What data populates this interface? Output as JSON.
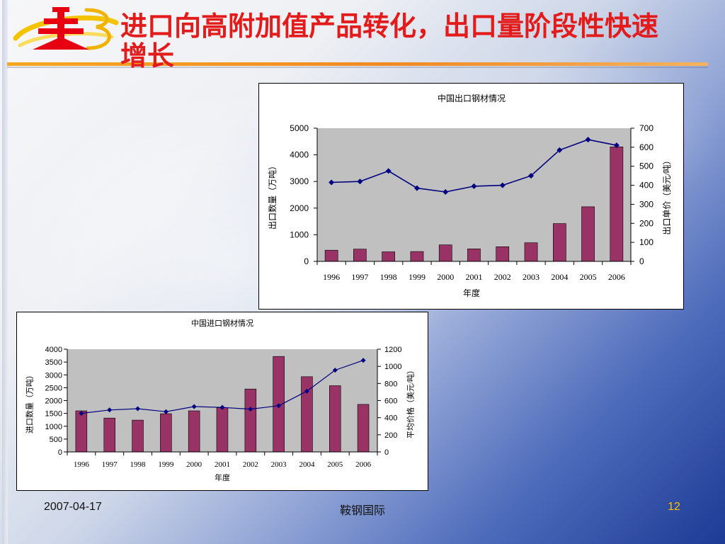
{
  "slide": {
    "title": "进口向高附加值产品转化，出口量阶段性快速增长",
    "footer_date": "2007-04-17",
    "footer_center": "鞍钢国际",
    "page_number": "12",
    "logo_icon": "company-logo-icon"
  },
  "colors": {
    "title": "#e31b1b",
    "page_number": "#ffc000",
    "bar": "#993366",
    "line": "#000080",
    "plot_background": "#c0c0c0"
  },
  "chart_data": [
    {
      "type": "bar",
      "title": "中国出口钢材情况",
      "xlabel": "年度",
      "ylabel": "出口数量（万吨）",
      "y2label": "出口单价（美元/吨）",
      "categories": [
        "1996",
        "1997",
        "1998",
        "1999",
        "2000",
        "2001",
        "2002",
        "2003",
        "2004",
        "2005",
        "2006"
      ],
      "series": [
        {
          "type": "bar",
          "values": [
            420,
            460,
            360,
            370,
            620,
            470,
            550,
            700,
            1420,
            2050,
            4300
          ]
        },
        {
          "type": "line",
          "secondary_axis": true,
          "values": [
            415,
            420,
            475,
            385,
            365,
            395,
            400,
            450,
            585,
            640,
            610
          ]
        }
      ],
      "ylim": [
        0,
        5000
      ],
      "y_ticks": [
        0,
        1000,
        2000,
        3000,
        4000,
        5000
      ],
      "y2lim": [
        0,
        700
      ],
      "y2_ticks": [
        0,
        100,
        200,
        300,
        400,
        500,
        600,
        700
      ],
      "grid": false
    },
    {
      "type": "bar",
      "title": "中国进口钢材情况",
      "xlabel": "年度",
      "ylabel": "进口数量（万吨）",
      "y2label": "平均价格（美元/吨）",
      "categories": [
        "1996",
        "1997",
        "1998",
        "1999",
        "2000",
        "2001",
        "2002",
        "2003",
        "2004",
        "2005",
        "2006"
      ],
      "series": [
        {
          "type": "bar",
          "values": [
            1600,
            1320,
            1240,
            1490,
            1600,
            1720,
            2450,
            3720,
            2930,
            2580,
            1850
          ]
        },
        {
          "type": "line",
          "secondary_axis": true,
          "values": [
            450,
            490,
            505,
            470,
            530,
            520,
            500,
            540,
            710,
            955,
            1070
          ]
        }
      ],
      "ylim": [
        0,
        4000
      ],
      "y_ticks": [
        0,
        500,
        1000,
        1500,
        2000,
        2500,
        3000,
        3500,
        4000
      ],
      "y2lim": [
        0,
        1200
      ],
      "y2_ticks": [
        0,
        200,
        400,
        600,
        800,
        1000,
        1200
      ],
      "grid": false
    }
  ]
}
